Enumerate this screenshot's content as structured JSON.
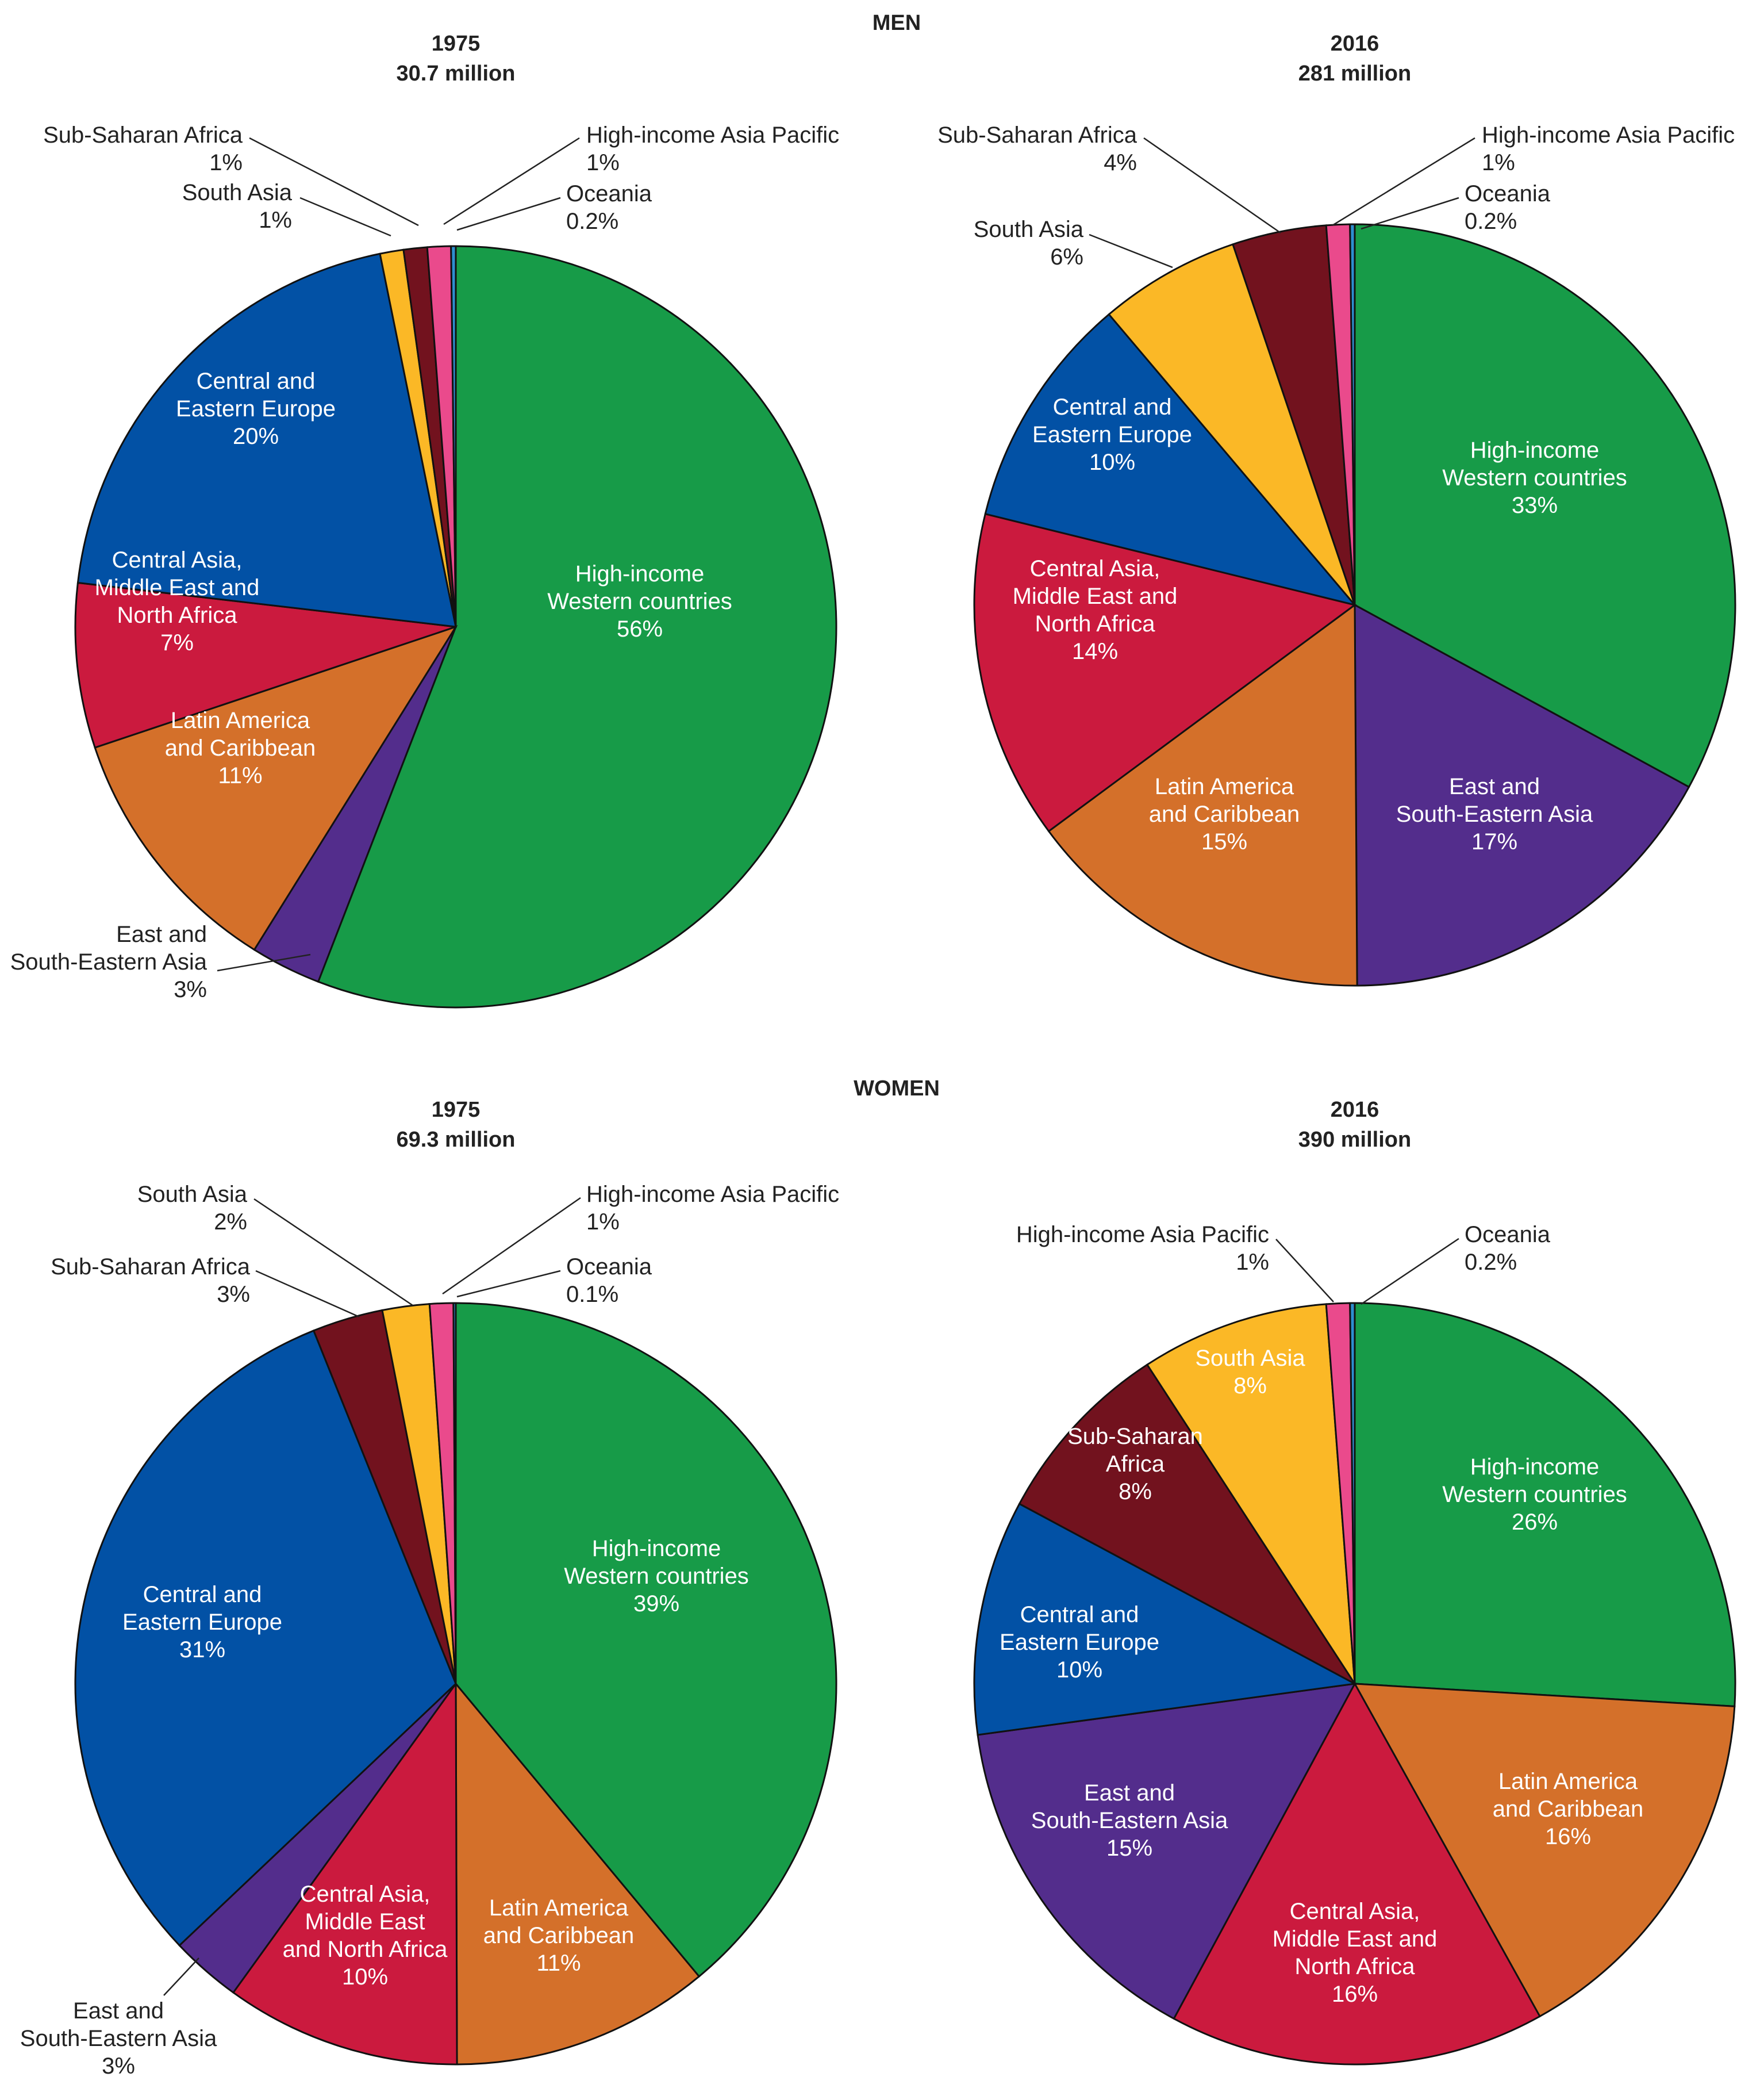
{
  "sections": [
    {
      "title": "MEN"
    },
    {
      "title": "WOMEN"
    }
  ],
  "colors": {
    "hi_western": "#179b48",
    "east_se_asia": "#532d8c",
    "latam": "#d4702a",
    "cent_asia_mena": "#cb1a3e",
    "cee": "#0251a5",
    "south_asia": "#fbb826",
    "ssa": "#72121e",
    "hi_asia_pacific": "#ea4a8c",
    "oceania": "#2d8fd0"
  },
  "chart_data": [
    {
      "type": "pie",
      "section": "MEN",
      "year": "1975",
      "total": "30.7 million",
      "slices": [
        {
          "key": "hi_western",
          "label": [
            "High-income",
            "Western countries"
          ],
          "pct_label": "56%",
          "value": 56,
          "placement": "inside"
        },
        {
          "key": "east_se_asia",
          "label": [
            "East and",
            "South-Eastern Asia"
          ],
          "pct_label": "3%",
          "value": 3,
          "placement": "outside"
        },
        {
          "key": "latam",
          "label": [
            "Latin America",
            "and Caribbean"
          ],
          "pct_label": "11%",
          "value": 11,
          "placement": "inside"
        },
        {
          "key": "cent_asia_mena",
          "label": [
            "Central Asia,",
            "Middle East and",
            "North Africa"
          ],
          "pct_label": "7%",
          "value": 7,
          "placement": "inside"
        },
        {
          "key": "cee",
          "label": [
            "Central and",
            "Eastern Europe"
          ],
          "pct_label": "20%",
          "value": 20,
          "placement": "inside"
        },
        {
          "key": "south_asia",
          "label": [
            "South Asia"
          ],
          "pct_label": "1%",
          "value": 1,
          "placement": "outside"
        },
        {
          "key": "ssa",
          "label": [
            "Sub-Saharan Africa"
          ],
          "pct_label": "1%",
          "value": 1,
          "placement": "outside"
        },
        {
          "key": "hi_asia_pacific",
          "label": [
            "High-income Asia Pacific"
          ],
          "pct_label": "1%",
          "value": 1,
          "placement": "outside"
        },
        {
          "key": "oceania",
          "label": [
            "Oceania"
          ],
          "pct_label": "0.2%",
          "value": 0.2,
          "placement": "outside"
        }
      ]
    },
    {
      "type": "pie",
      "section": "MEN",
      "year": "2016",
      "total": "281 million",
      "slices": [
        {
          "key": "hi_western",
          "label": [
            "High-income",
            "Western countries"
          ],
          "pct_label": "33%",
          "value": 33,
          "placement": "inside"
        },
        {
          "key": "east_se_asia",
          "label": [
            "East and",
            "South-Eastern Asia"
          ],
          "pct_label": "17%",
          "value": 17,
          "placement": "inside"
        },
        {
          "key": "latam",
          "label": [
            "Latin America",
            "and Caribbean"
          ],
          "pct_label": "15%",
          "value": 15,
          "placement": "inside"
        },
        {
          "key": "cent_asia_mena",
          "label": [
            "Central Asia,",
            "Middle East and",
            "North Africa"
          ],
          "pct_label": "14%",
          "value": 14,
          "placement": "inside"
        },
        {
          "key": "cee",
          "label": [
            "Central and",
            "Eastern Europe"
          ],
          "pct_label": "10%",
          "value": 10,
          "placement": "inside"
        },
        {
          "key": "south_asia",
          "label": [
            "South Asia"
          ],
          "pct_label": "6%",
          "value": 6,
          "placement": "outside"
        },
        {
          "key": "ssa",
          "label": [
            "Sub-Saharan Africa"
          ],
          "pct_label": "4%",
          "value": 4,
          "placement": "outside"
        },
        {
          "key": "hi_asia_pacific",
          "label": [
            "High-income Asia Pacific"
          ],
          "pct_label": "1%",
          "value": 1,
          "placement": "outside"
        },
        {
          "key": "oceania",
          "label": [
            "Oceania"
          ],
          "pct_label": "0.2%",
          "value": 0.2,
          "placement": "outside"
        }
      ]
    },
    {
      "type": "pie",
      "section": "WOMEN",
      "year": "1975",
      "total": "69.3 million",
      "slices": [
        {
          "key": "hi_western",
          "label": [
            "High-income",
            "Western countries"
          ],
          "pct_label": "39%",
          "value": 39,
          "placement": "inside"
        },
        {
          "key": "latam",
          "label": [
            "Latin America",
            "and Caribbean"
          ],
          "pct_label": "11%",
          "value": 11,
          "placement": "inside"
        },
        {
          "key": "cent_asia_mena",
          "label": [
            "Central Asia,",
            "Middle East",
            "and North Africa"
          ],
          "pct_label": "10%",
          "value": 10,
          "placement": "inside"
        },
        {
          "key": "east_se_asia",
          "label": [
            "East and",
            "South-Eastern Asia"
          ],
          "pct_label": "3%",
          "value": 3,
          "placement": "outside"
        },
        {
          "key": "cee",
          "label": [
            "Central and",
            "Eastern Europe"
          ],
          "pct_label": "31%",
          "value": 31,
          "placement": "inside"
        },
        {
          "key": "ssa",
          "label": [
            "Sub-Saharan Africa"
          ],
          "pct_label": "3%",
          "value": 3,
          "placement": "outside"
        },
        {
          "key": "south_asia",
          "label": [
            "South Asia"
          ],
          "pct_label": "2%",
          "value": 2,
          "placement": "outside"
        },
        {
          "key": "hi_asia_pacific",
          "label": [
            "High-income Asia Pacific"
          ],
          "pct_label": "1%",
          "value": 1,
          "placement": "outside"
        },
        {
          "key": "oceania",
          "label": [
            "Oceania"
          ],
          "pct_label": "0.1%",
          "value": 0.1,
          "placement": "outside"
        }
      ]
    },
    {
      "type": "pie",
      "section": "WOMEN",
      "year": "2016",
      "total": "390 million",
      "slices": [
        {
          "key": "hi_western",
          "label": [
            "High-income",
            "Western countries"
          ],
          "pct_label": "26%",
          "value": 26,
          "placement": "inside"
        },
        {
          "key": "latam",
          "label": [
            "Latin America",
            "and Caribbean"
          ],
          "pct_label": "16%",
          "value": 16,
          "placement": "inside"
        },
        {
          "key": "cent_asia_mena",
          "label": [
            "Central Asia,",
            "Middle East and",
            "North Africa"
          ],
          "pct_label": "16%",
          "value": 16,
          "placement": "inside"
        },
        {
          "key": "east_se_asia",
          "label": [
            "East and",
            "South-Eastern Asia"
          ],
          "pct_label": "15%",
          "value": 15,
          "placement": "inside"
        },
        {
          "key": "cee",
          "label": [
            "Central and",
            "Eastern Europe"
          ],
          "pct_label": "10%",
          "value": 10,
          "placement": "inside"
        },
        {
          "key": "ssa",
          "label": [
            "Sub-Saharan",
            "Africa"
          ],
          "pct_label": "8%",
          "value": 8,
          "placement": "inside"
        },
        {
          "key": "south_asia",
          "label": [
            "South Asia"
          ],
          "pct_label": "8%",
          "value": 8,
          "placement": "inside"
        },
        {
          "key": "hi_asia_pacific",
          "label": [
            "High-income Asia Pacific"
          ],
          "pct_label": "1%",
          "value": 1,
          "placement": "outside"
        },
        {
          "key": "oceania",
          "label": [
            "Oceania"
          ],
          "pct_label": "0.2%",
          "value": 0.2,
          "placement": "outside"
        }
      ]
    }
  ]
}
